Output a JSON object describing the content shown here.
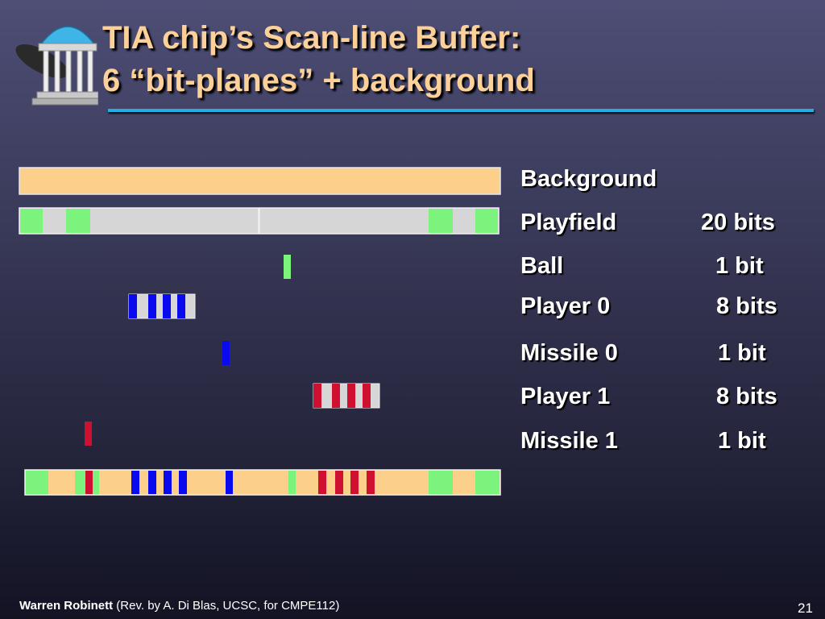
{
  "title": {
    "line1": "TIA chip’s Scan-line Buffer:",
    "line2": "6 “bit-planes” + background"
  },
  "rows": [
    {
      "name": "Background",
      "bits": ""
    },
    {
      "name": "Playfield",
      "bits": "20 bits"
    },
    {
      "name": "Ball",
      "bits": "1 bit"
    },
    {
      "name": "Player 0",
      "bits": "8 bits"
    },
    {
      "name": "Missile 0",
      "bits": "1 bit"
    },
    {
      "name": "Player 1",
      "bits": "8 bits"
    },
    {
      "name": "Missile 1",
      "bits": "1 bit"
    }
  ],
  "colors": {
    "background": "#fccf8a",
    "playfield": "#7cf37c",
    "ball": "#7cf37c",
    "player0": "#0a0aee",
    "missile0": "#0a0aee",
    "player1": "#d01030",
    "missile1": "#d01030",
    "unset_bit": "#d6d6d6",
    "title_text": "#fcd199",
    "title_rule": "#22b0e4"
  },
  "footer": {
    "author": "Warren Robinett",
    "credit": "(Rev. by A. Di Blas, UCSC, for CMPE112)",
    "page": "21"
  }
}
